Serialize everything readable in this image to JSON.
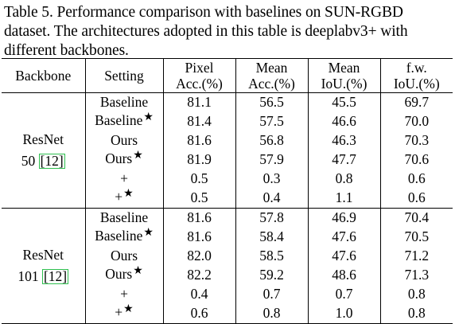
{
  "caption": {
    "line1": "Table 5.  Performance comparison with baselines on SUN-RGBD",
    "line2": "dataset. The architectures adopted in this table is deeplabv3+ with",
    "line3": "different backbones."
  },
  "headers": {
    "backbone": "Backbone",
    "setting": "Setting",
    "pixel_acc_1": "Pixel",
    "pixel_acc_2": "Acc.(%)",
    "mean_acc_1": "Mean",
    "mean_acc_2": "Acc.(%)",
    "mean_iou_1": "Mean",
    "mean_iou_2": "IoU.(%)",
    "fw_iou_1": "f.w.",
    "fw_iou_2": "IoU.(%)"
  },
  "star_symbol": "★",
  "groups": [
    {
      "backbone_line1": "ResNet",
      "backbone_line2_prefix": "50",
      "citation": "[12]",
      "rows": [
        {
          "setting": "Baseline",
          "star": false,
          "pixel": "81.1",
          "mean_acc": "56.5",
          "mean_iou": "45.5",
          "fw_iou": "69.7"
        },
        {
          "setting": "Baseline",
          "star": true,
          "pixel": "81.4",
          "mean_acc": "57.5",
          "mean_iou": "46.6",
          "fw_iou": "70.0"
        },
        {
          "setting": "Ours",
          "star": false,
          "pixel": "81.6",
          "mean_acc": "56.8",
          "mean_iou": "46.3",
          "fw_iou": "70.3"
        },
        {
          "setting": "Ours",
          "star": true,
          "pixel": "81.9",
          "mean_acc": "57.9",
          "mean_iou": "47.7",
          "fw_iou": "70.6"
        },
        {
          "setting": "+",
          "star": false,
          "pixel": "0.5",
          "mean_acc": "0.3",
          "mean_iou": "0.8",
          "fw_iou": "0.6"
        },
        {
          "setting": "+",
          "star": true,
          "pixel": "0.5",
          "mean_acc": "0.4",
          "mean_iou": "1.1",
          "fw_iou": "0.6"
        }
      ]
    },
    {
      "backbone_line1": "ResNet",
      "backbone_line2_prefix": "101",
      "citation": "[12]",
      "rows": [
        {
          "setting": "Baseline",
          "star": false,
          "pixel": "81.6",
          "mean_acc": "57.8",
          "mean_iou": "46.9",
          "fw_iou": "70.4"
        },
        {
          "setting": "Baseline",
          "star": true,
          "pixel": "81.6",
          "mean_acc": "58.4",
          "mean_iou": "47.6",
          "fw_iou": "70.5"
        },
        {
          "setting": "Ours",
          "star": false,
          "pixel": "82.0",
          "mean_acc": "58.5",
          "mean_iou": "47.6",
          "fw_iou": "71.2"
        },
        {
          "setting": "Ours",
          "star": true,
          "pixel": "82.2",
          "mean_acc": "59.2",
          "mean_iou": "48.6",
          "fw_iou": "71.3"
        },
        {
          "setting": "+",
          "star": false,
          "pixel": "0.4",
          "mean_acc": "0.7",
          "mean_iou": "0.7",
          "fw_iou": "0.8"
        },
        {
          "setting": "+",
          "star": true,
          "pixel": "0.6",
          "mean_acc": "0.8",
          "mean_iou": "1.0",
          "fw_iou": "0.8"
        }
      ]
    }
  ],
  "colors": {
    "text": "#000000",
    "citation_box": "#2fbf4f",
    "background": "#ffffff"
  }
}
